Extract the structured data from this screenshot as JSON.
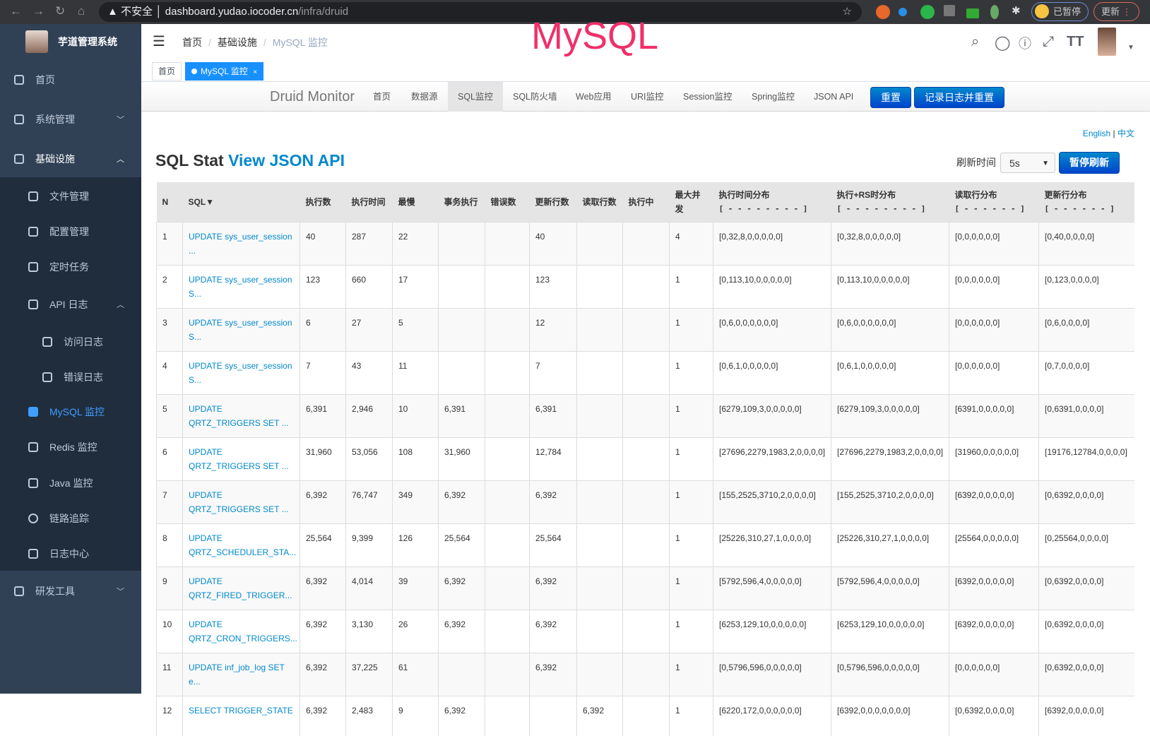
{
  "browser": {
    "security": "不安全",
    "url_host": "dashboard.yudao.iocoder.cn",
    "url_path": "/infra/druid",
    "paused": "已暂停",
    "update": "更新"
  },
  "sidebar": {
    "app_name": "芋道管理系统",
    "items": [
      {
        "label": "首页",
        "icon": "dashboard-icon"
      },
      {
        "label": "系统管理",
        "icon": "gear-icon",
        "arrow": "chevron-down"
      },
      {
        "label": "基础设施",
        "icon": "monitor-icon",
        "arrow": "chevron-up"
      },
      {
        "label": "文件管理",
        "icon": "upload-icon"
      },
      {
        "label": "配置管理",
        "icon": "edit-icon"
      },
      {
        "label": "定时任务",
        "icon": "job-icon"
      },
      {
        "label": "API 日志",
        "icon": "log-icon",
        "arrow": "chevron-up"
      },
      {
        "label": "访问日志",
        "icon": "log-icon"
      },
      {
        "label": "错误日志",
        "icon": "log-icon"
      },
      {
        "label": "MySQL 监控",
        "icon": "mysql-icon",
        "active": true
      },
      {
        "label": "Redis 监控",
        "icon": "redis-icon"
      },
      {
        "label": "Java 监控",
        "icon": "java-icon"
      },
      {
        "label": "链路追踪",
        "icon": "eye-icon"
      },
      {
        "label": "日志中心",
        "icon": "log-icon"
      },
      {
        "label": "研发工具",
        "icon": "tool-icon",
        "arrow": "chevron-down"
      }
    ]
  },
  "navbar": {
    "breadcrumb": [
      "首页",
      "基础设施",
      "MySQL 监控"
    ],
    "watermark": "MySQL"
  },
  "tags": [
    {
      "label": "首页"
    },
    {
      "label": "MySQL 监控",
      "active": true
    }
  ],
  "druid": {
    "brand": "Druid Monitor",
    "nav": [
      "首页",
      "数据源",
      "SQL监控",
      "SQL防火墙",
      "Web应用",
      "URI监控",
      "Session监控",
      "Spring监控",
      "JSON API"
    ],
    "active_nav": "SQL监控",
    "reset": "重置",
    "log_reset": "记录日志并重置",
    "lang_en": "English",
    "lang_sep": "|",
    "lang_zh": "中文",
    "title": "SQL Stat",
    "title_link": "View JSON API",
    "refresh_label": "刷新时间",
    "refresh_value": "5s",
    "pause": "暂停刷新"
  },
  "table": {
    "headers": [
      "N",
      "SQL▼",
      "执行数",
      "执行时间",
      "最慢",
      "事务执行",
      "错误数",
      "更新行数",
      "读取行数",
      "执行中",
      "最大并发",
      "执行时间分布",
      "执行+RS时分布",
      "读取行分布",
      "更新行分布"
    ],
    "dist_marks": [
      "[ - - - - - - - - ]",
      "[ - - - - - - - - ]",
      "[ - - - - - - ]",
      "[ - - - - - - ]"
    ],
    "rows": [
      [
        "1",
        "UPDATE sys_user_session ...",
        "40",
        "287",
        "22",
        "",
        "",
        "40",
        "",
        "",
        "4",
        "[0,32,8,0,0,0,0,0]",
        "[0,32,8,0,0,0,0,0]",
        "[0,0,0,0,0,0]",
        "[0,40,0,0,0,0]"
      ],
      [
        "2",
        "UPDATE sys_user_session S...",
        "123",
        "660",
        "17",
        "",
        "",
        "123",
        "",
        "",
        "1",
        "[0,113,10,0,0,0,0,0]",
        "[0,113,10,0,0,0,0,0]",
        "[0,0,0,0,0,0]",
        "[0,123,0,0,0,0]"
      ],
      [
        "3",
        "UPDATE sys_user_session S...",
        "6",
        "27",
        "5",
        "",
        "",
        "12",
        "",
        "",
        "1",
        "[0,6,0,0,0,0,0,0]",
        "[0,6,0,0,0,0,0,0]",
        "[0,0,0,0,0,0]",
        "[0,6,0,0,0,0]"
      ],
      [
        "4",
        "UPDATE sys_user_session S...",
        "7",
        "43",
        "11",
        "",
        "",
        "7",
        "",
        "",
        "1",
        "[0,6,1,0,0,0,0,0]",
        "[0,6,1,0,0,0,0,0]",
        "[0,0,0,0,0,0]",
        "[0,7,0,0,0,0]"
      ],
      [
        "5",
        "UPDATE QRTZ_TRIGGERS SET ...",
        "6,391",
        "2,946",
        "10",
        "6,391",
        "",
        "6,391",
        "",
        "",
        "1",
        "[6279,109,3,0,0,0,0,0]",
        "[6279,109,3,0,0,0,0,0]",
        "[6391,0,0,0,0,0]",
        "[0,6391,0,0,0,0]"
      ],
      [
        "6",
        "UPDATE QRTZ_TRIGGERS SET ...",
        "31,960",
        "53,056",
        "108",
        "31,960",
        "",
        "12,784",
        "",
        "",
        "1",
        "[27696,2279,1983,2,0,0,0,0]",
        "[27696,2279,1983,2,0,0,0,0]",
        "[31960,0,0,0,0,0]",
        "[19176,12784,0,0,0,0]"
      ],
      [
        "7",
        "UPDATE QRTZ_TRIGGERS SET ...",
        "6,392",
        "76,747",
        "349",
        "6,392",
        "",
        "6,392",
        "",
        "",
        "1",
        "[155,2525,3710,2,0,0,0,0]",
        "[155,2525,3710,2,0,0,0,0]",
        "[6392,0,0,0,0,0]",
        "[0,6392,0,0,0,0]"
      ],
      [
        "8",
        "UPDATE QRTZ_SCHEDULER_STA...",
        "25,564",
        "9,399",
        "126",
        "25,564",
        "",
        "25,564",
        "",
        "",
        "1",
        "[25226,310,27,1,0,0,0,0]",
        "[25226,310,27,1,0,0,0,0]",
        "[25564,0,0,0,0,0]",
        "[0,25564,0,0,0,0]"
      ],
      [
        "9",
        "UPDATE QRTZ_FIRED_TRIGGER...",
        "6,392",
        "4,014",
        "39",
        "6,392",
        "",
        "6,392",
        "",
        "",
        "1",
        "[5792,596,4,0,0,0,0,0]",
        "[5792,596,4,0,0,0,0,0]",
        "[6392,0,0,0,0,0]",
        "[0,6392,0,0,0,0]"
      ],
      [
        "10",
        "UPDATE QRTZ_CRON_TRIGGERS...",
        "6,392",
        "3,130",
        "26",
        "6,392",
        "",
        "6,392",
        "",
        "",
        "1",
        "[6253,129,10,0,0,0,0,0]",
        "[6253,129,10,0,0,0,0,0]",
        "[6392,0,0,0,0,0]",
        "[0,6392,0,0,0,0]"
      ],
      [
        "11",
        "UPDATE inf_job_log SET e...",
        "6,392",
        "37,225",
        "61",
        "",
        "",
        "6,392",
        "",
        "",
        "1",
        "[0,5796,596,0,0,0,0,0]",
        "[0,5796,596,0,0,0,0,0]",
        "[0,0,0,0,0,0]",
        "[0,6392,0,0,0,0]"
      ],
      [
        "12",
        "SELECT TRIGGER_STATE",
        "6,392",
        "2,483",
        "9",
        "6,392",
        "",
        "",
        "6,392",
        "",
        "1",
        "[6220,172,0,0,0,0,0,0]",
        "[6392,0,0,0,0,0,0,0]",
        "[0,6392,0,0,0,0]",
        "[6392,0,0,0,0,0]"
      ]
    ]
  },
  "colors": {
    "sidebar_bg": "#304156",
    "submenu_bg": "#1f2d3d",
    "active": "#409eff",
    "link": "#0088cc",
    "button": "#0055cc",
    "watermark": "#f0306a"
  }
}
